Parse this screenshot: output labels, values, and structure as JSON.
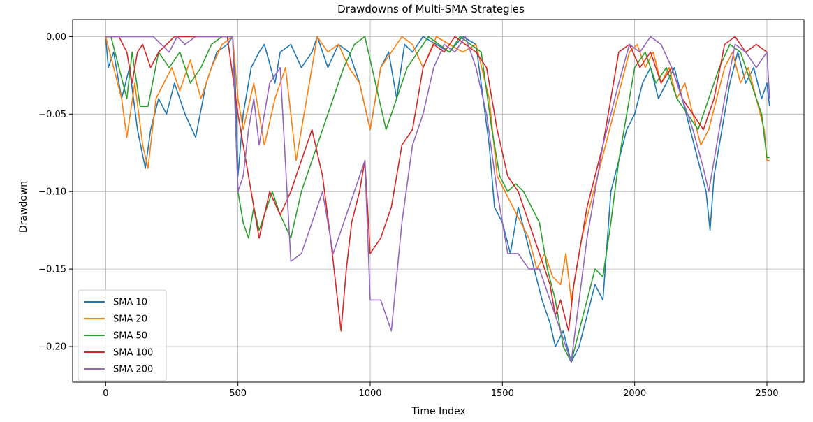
{
  "chart_data": {
    "type": "line",
    "title": "Drawdowns of Multi-SMA Strategies",
    "xlabel": "Time Index",
    "ylabel": "Drawdown",
    "xlim": [
      -125,
      2640
    ],
    "ylim": [
      -0.223,
      0.011
    ],
    "x_ticks": [
      0,
      500,
      1000,
      1500,
      2000,
      2500
    ],
    "x_tick_labels": [
      "0",
      "500",
      "1000",
      "1500",
      "2000",
      "2500"
    ],
    "y_ticks": [
      0.0,
      -0.05,
      -0.1,
      -0.15,
      -0.2
    ],
    "y_tick_labels": [
      "0.00",
      "−0.05",
      "−0.10",
      "−0.15",
      "−0.20"
    ],
    "grid": true,
    "legend_position": "lower-left",
    "series": [
      {
        "name": "SMA 10",
        "color": "#1f77b4",
        "x": [
          0,
          10,
          30,
          60,
          90,
          120,
          150,
          170,
          200,
          230,
          260,
          300,
          340,
          380,
          420,
          460,
          480,
          490,
          500,
          520,
          550,
          580,
          600,
          640,
          660,
          700,
          740,
          780,
          800,
          840,
          880,
          920,
          960,
          1000,
          1040,
          1070,
          1100,
          1130,
          1160,
          1200,
          1250,
          1300,
          1350,
          1400,
          1450,
          1470,
          1500,
          1530,
          1560,
          1590,
          1620,
          1650,
          1680,
          1700,
          1730,
          1760,
          1790,
          1820,
          1850,
          1880,
          1910,
          1940,
          1970,
          2000,
          2030,
          2060,
          2090,
          2120,
          2150,
          2180,
          2210,
          2240,
          2270,
          2285,
          2300,
          2330,
          2360,
          2390,
          2420,
          2450,
          2480,
          2500,
          2510
        ],
        "y": [
          0,
          -0.02,
          -0.01,
          -0.04,
          -0.02,
          -0.06,
          -0.085,
          -0.06,
          -0.04,
          -0.05,
          -0.03,
          -0.05,
          -0.065,
          -0.03,
          -0.01,
          -0.005,
          0,
          -0.03,
          -0.09,
          -0.05,
          -0.02,
          -0.01,
          -0.005,
          -0.03,
          -0.01,
          -0.005,
          -0.02,
          -0.01,
          0,
          -0.02,
          -0.005,
          -0.01,
          -0.03,
          -0.06,
          -0.02,
          -0.01,
          -0.04,
          -0.005,
          -0.01,
          0,
          -0.005,
          -0.01,
          0,
          -0.005,
          -0.07,
          -0.11,
          -0.12,
          -0.14,
          -0.11,
          -0.13,
          -0.15,
          -0.17,
          -0.185,
          -0.2,
          -0.19,
          -0.21,
          -0.2,
          -0.18,
          -0.16,
          -0.17,
          -0.1,
          -0.08,
          -0.06,
          -0.05,
          -0.03,
          -0.02,
          -0.04,
          -0.03,
          -0.02,
          -0.04,
          -0.06,
          -0.08,
          -0.1,
          -0.125,
          -0.09,
          -0.06,
          -0.03,
          -0.01,
          -0.03,
          -0.02,
          -0.04,
          -0.03,
          -0.045
        ]
      },
      {
        "name": "SMA 20",
        "color": "#ff7f0e",
        "x": [
          0,
          30,
          60,
          80,
          110,
          140,
          160,
          190,
          220,
          250,
          280,
          320,
          360,
          400,
          440,
          480,
          500,
          520,
          560,
          600,
          640,
          680,
          720,
          760,
          800,
          840,
          880,
          920,
          960,
          1000,
          1040,
          1080,
          1120,
          1160,
          1200,
          1250,
          1300,
          1350,
          1400,
          1450,
          1480,
          1510,
          1540,
          1570,
          1600,
          1630,
          1660,
          1690,
          1720,
          1740,
          1760,
          1780,
          1800,
          1830,
          1860,
          1890,
          1920,
          1950,
          1980,
          2010,
          2040,
          2070,
          2100,
          2130,
          2160,
          2190,
          2220,
          2250,
          2280,
          2310,
          2340,
          2370,
          2400,
          2430,
          2460,
          2490,
          2500,
          2510
        ],
        "y": [
          0,
          -0.02,
          -0.04,
          -0.065,
          -0.03,
          -0.07,
          -0.085,
          -0.04,
          -0.03,
          -0.02,
          -0.035,
          -0.015,
          -0.04,
          -0.02,
          -0.005,
          0,
          -0.04,
          -0.06,
          -0.03,
          -0.07,
          -0.04,
          -0.02,
          -0.08,
          -0.04,
          0,
          -0.01,
          -0.005,
          -0.02,
          -0.03,
          -0.06,
          -0.02,
          -0.01,
          0,
          -0.005,
          -0.02,
          0,
          -0.005,
          -0.01,
          -0.005,
          -0.04,
          -0.09,
          -0.1,
          -0.11,
          -0.12,
          -0.13,
          -0.15,
          -0.14,
          -0.155,
          -0.16,
          -0.14,
          -0.17,
          -0.15,
          -0.13,
          -0.11,
          -0.09,
          -0.07,
          -0.05,
          -0.03,
          -0.01,
          -0.005,
          -0.02,
          -0.01,
          -0.03,
          -0.02,
          -0.04,
          -0.03,
          -0.05,
          -0.07,
          -0.06,
          -0.04,
          -0.02,
          -0.01,
          -0.03,
          -0.02,
          -0.04,
          -0.06,
          -0.08,
          -0.08
        ]
      },
      {
        "name": "SMA 50",
        "color": "#2ca02c",
        "x": [
          0,
          20,
          50,
          80,
          100,
          130,
          160,
          200,
          240,
          280,
          320,
          360,
          400,
          440,
          480,
          500,
          520,
          540,
          560,
          580,
          600,
          630,
          660,
          700,
          740,
          780,
          820,
          860,
          900,
          940,
          980,
          1020,
          1060,
          1100,
          1140,
          1180,
          1220,
          1260,
          1300,
          1340,
          1380,
          1420,
          1460,
          1490,
          1520,
          1550,
          1580,
          1610,
          1640,
          1670,
          1700,
          1730,
          1760,
          1790,
          1820,
          1850,
          1880,
          1910,
          1940,
          1970,
          2000,
          2040,
          2080,
          2120,
          2160,
          2200,
          2240,
          2280,
          2320,
          2360,
          2400,
          2440,
          2480,
          2500,
          2510
        ],
        "y": [
          0,
          0,
          -0.02,
          -0.04,
          -0.01,
          -0.045,
          -0.045,
          -0.01,
          -0.02,
          -0.01,
          -0.03,
          -0.02,
          -0.005,
          0,
          0,
          -0.1,
          -0.12,
          -0.13,
          -0.11,
          -0.125,
          -0.115,
          -0.1,
          -0.115,
          -0.13,
          -0.1,
          -0.08,
          -0.06,
          -0.04,
          -0.02,
          -0.005,
          0,
          -0.03,
          -0.06,
          -0.04,
          -0.02,
          -0.01,
          0,
          -0.005,
          -0.01,
          0,
          -0.005,
          -0.01,
          -0.06,
          -0.09,
          -0.1,
          -0.095,
          -0.1,
          -0.11,
          -0.12,
          -0.15,
          -0.17,
          -0.2,
          -0.21,
          -0.19,
          -0.17,
          -0.15,
          -0.155,
          -0.12,
          -0.08,
          -0.05,
          -0.02,
          -0.01,
          -0.03,
          -0.02,
          -0.04,
          -0.05,
          -0.06,
          -0.04,
          -0.02,
          -0.005,
          -0.01,
          -0.03,
          -0.05,
          -0.078,
          -0.078
        ]
      },
      {
        "name": "SMA 100",
        "color": "#d62728",
        "x": [
          0,
          50,
          80,
          100,
          120,
          140,
          170,
          200,
          230,
          260,
          300,
          340,
          380,
          420,
          460,
          500,
          540,
          560,
          580,
          600,
          620,
          660,
          700,
          740,
          780,
          820,
          850,
          870,
          890,
          910,
          930,
          960,
          980,
          1000,
          1040,
          1080,
          1120,
          1160,
          1200,
          1240,
          1280,
          1320,
          1360,
          1400,
          1440,
          1480,
          1520,
          1560,
          1600,
          1640,
          1680,
          1700,
          1720,
          1750,
          1770,
          1790,
          1820,
          1850,
          1880,
          1910,
          1940,
          1980,
          2020,
          2060,
          2100,
          2140,
          2180,
          2220,
          2260,
          2300,
          2340,
          2380,
          2420,
          2460,
          2500
        ],
        "y": [
          0,
          0,
          -0.01,
          -0.03,
          -0.01,
          -0.005,
          -0.02,
          -0.01,
          -0.005,
          0,
          0,
          0,
          0,
          0,
          0,
          -0.05,
          -0.09,
          -0.11,
          -0.13,
          -0.115,
          -0.1,
          -0.115,
          -0.1,
          -0.08,
          -0.06,
          -0.09,
          -0.13,
          -0.16,
          -0.19,
          -0.15,
          -0.12,
          -0.1,
          -0.08,
          -0.14,
          -0.13,
          -0.11,
          -0.07,
          -0.06,
          -0.02,
          -0.005,
          -0.01,
          0,
          -0.005,
          -0.01,
          -0.02,
          -0.06,
          -0.09,
          -0.1,
          -0.12,
          -0.14,
          -0.16,
          -0.18,
          -0.17,
          -0.19,
          -0.16,
          -0.14,
          -0.11,
          -0.09,
          -0.07,
          -0.04,
          -0.01,
          -0.005,
          -0.02,
          -0.01,
          -0.03,
          -0.02,
          -0.04,
          -0.05,
          -0.06,
          -0.04,
          -0.005,
          0,
          -0.01,
          -0.005,
          -0.01
        ]
      },
      {
        "name": "SMA 200",
        "color": "#9467bd",
        "x": [
          0,
          100,
          150,
          180,
          210,
          240,
          270,
          300,
          340,
          380,
          420,
          460,
          480,
          500,
          520,
          540,
          560,
          580,
          620,
          660,
          700,
          740,
          780,
          820,
          860,
          900,
          940,
          980,
          1000,
          1040,
          1080,
          1120,
          1160,
          1200,
          1240,
          1280,
          1320,
          1360,
          1400,
          1440,
          1480,
          1520,
          1560,
          1600,
          1640,
          1680,
          1720,
          1760,
          1790,
          1820,
          1850,
          1880,
          1910,
          1940,
          1980,
          2020,
          2060,
          2100,
          2140,
          2180,
          2220,
          2260,
          2280,
          2300,
          2340,
          2380,
          2420,
          2460,
          2500,
          2510
        ],
        "y": [
          0,
          0,
          0,
          0,
          -0.005,
          -0.01,
          0,
          -0.005,
          0,
          0,
          0,
          0,
          0,
          -0.1,
          -0.09,
          -0.06,
          -0.04,
          -0.07,
          -0.03,
          -0.02,
          -0.145,
          -0.14,
          -0.12,
          -0.1,
          -0.14,
          -0.12,
          -0.1,
          -0.08,
          -0.17,
          -0.17,
          -0.19,
          -0.12,
          -0.07,
          -0.05,
          -0.02,
          -0.005,
          -0.01,
          0,
          -0.02,
          -0.05,
          -0.1,
          -0.14,
          -0.14,
          -0.15,
          -0.15,
          -0.17,
          -0.19,
          -0.21,
          -0.17,
          -0.13,
          -0.1,
          -0.07,
          -0.05,
          -0.03,
          -0.005,
          -0.01,
          0,
          -0.005,
          -0.02,
          -0.04,
          -0.06,
          -0.085,
          -0.1,
          -0.08,
          -0.04,
          -0.005,
          -0.01,
          -0.02,
          -0.01,
          -0.04
        ]
      }
    ]
  }
}
